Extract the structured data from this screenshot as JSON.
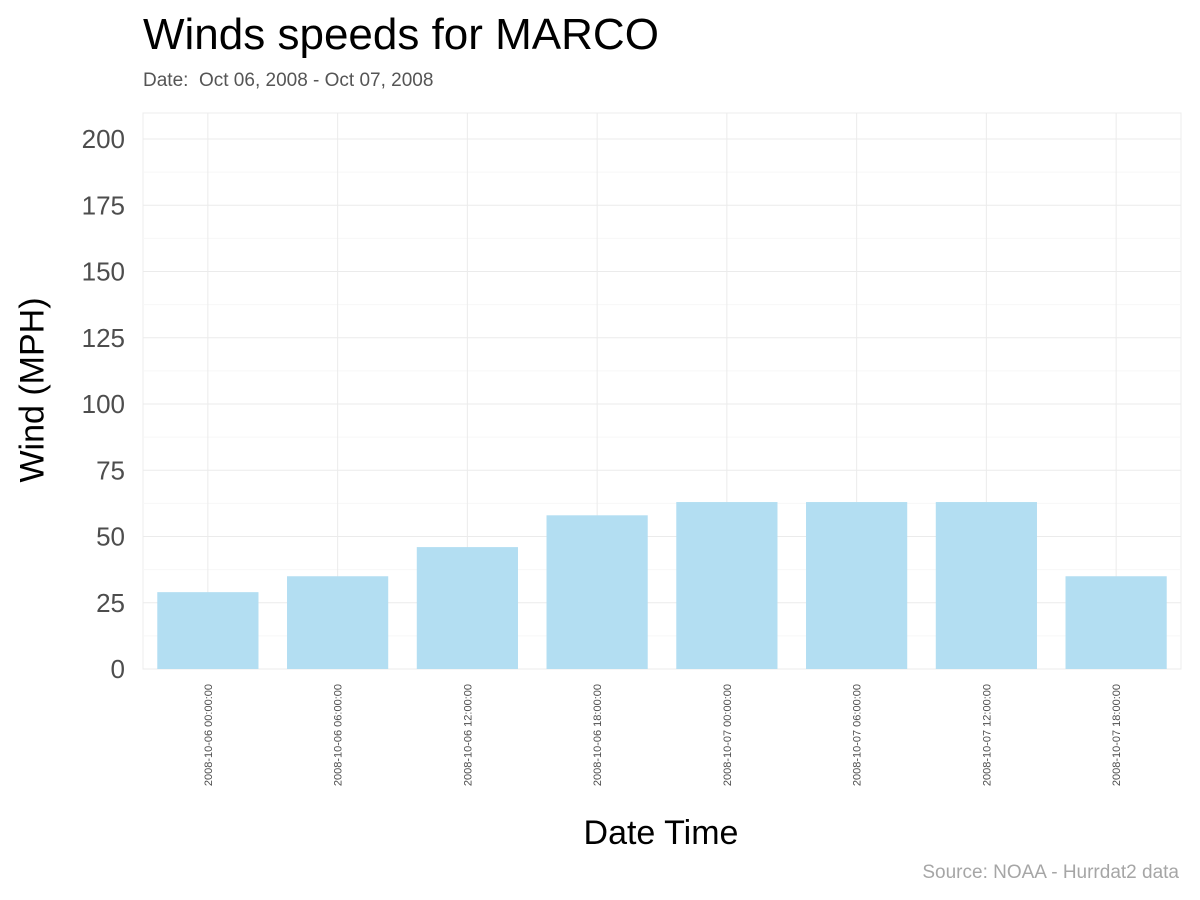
{
  "chart_data": {
    "type": "bar",
    "title": "Winds speeds for MARCO",
    "subtitle": "Date:  Oct 06, 2008 - Oct 07, 2008",
    "xlabel": "Date Time",
    "ylabel": "Wind (MPH)",
    "caption": "Source: NOAA - Hurrdat2 data",
    "categories": [
      "2008-10-06 00:00:00",
      "2008-10-06 06:00:00",
      "2008-10-06 12:00:00",
      "2008-10-06 18:00:00",
      "2008-10-07 00:00:00",
      "2008-10-07 06:00:00",
      "2008-10-07 12:00:00",
      "2008-10-07 18:00:00"
    ],
    "values": [
      29,
      35,
      46,
      58,
      63,
      63,
      63,
      35
    ],
    "ylim": [
      0,
      200
    ],
    "yticks": [
      0,
      25,
      50,
      75,
      100,
      125,
      150,
      175,
      200
    ],
    "grid": true,
    "bar_color": "#b3def2"
  }
}
